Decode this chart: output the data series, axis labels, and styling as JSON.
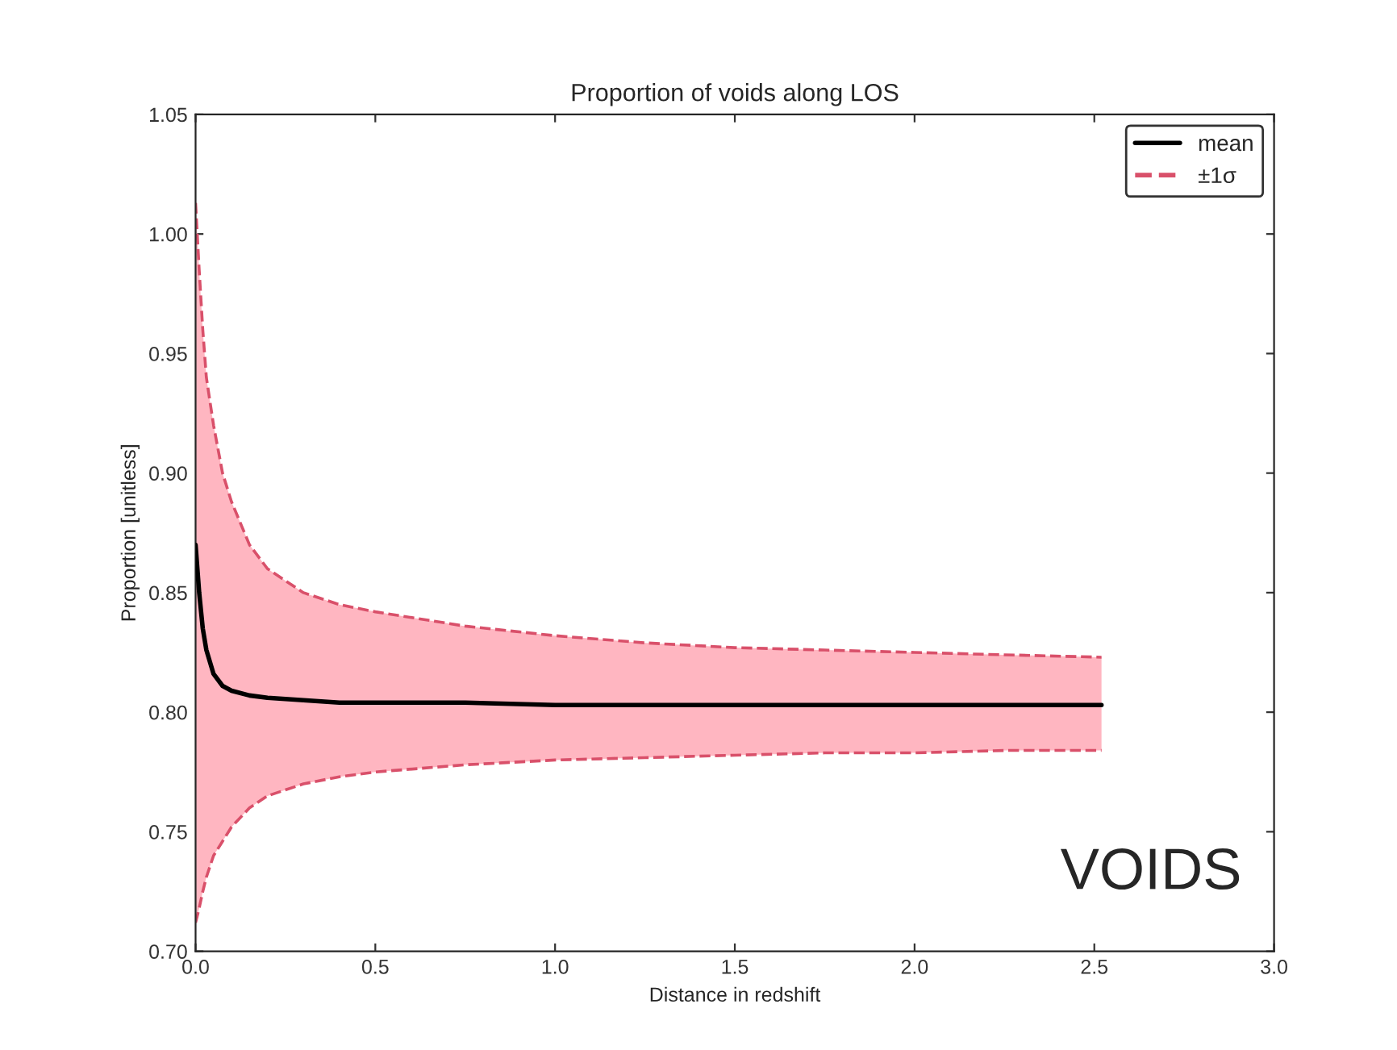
{
  "chart_data": {
    "type": "line",
    "title": "Proportion of voids along LOS",
    "xlabel": "Distance in redshift",
    "ylabel": "Proportion [unitless]",
    "x": [
      0,
      0.01,
      0.02,
      0.03,
      0.05,
      0.075,
      0.1,
      0.15,
      0.2,
      0.3,
      0.4,
      0.5,
      0.75,
      1.0,
      1.25,
      1.5,
      1.75,
      2.0,
      2.25,
      2.52
    ],
    "series": [
      {
        "name": "mean",
        "color": "#000000",
        "line_style": "solid",
        "values": [
          0.87,
          0.85,
          0.835,
          0.826,
          0.816,
          0.811,
          0.809,
          0.807,
          0.806,
          0.805,
          0.804,
          0.804,
          0.804,
          0.803,
          0.803,
          0.803,
          0.803,
          0.803,
          0.803,
          0.803
        ],
        "lower": [
          0.712,
          0.718,
          0.725,
          0.731,
          0.74,
          0.746,
          0.752,
          0.76,
          0.765,
          0.77,
          0.773,
          0.775,
          0.778,
          0.78,
          0.781,
          0.782,
          0.783,
          0.783,
          0.784,
          0.784
        ],
        "upper": [
          1.013,
          0.985,
          0.96,
          0.94,
          0.92,
          0.9,
          0.888,
          0.87,
          0.86,
          0.85,
          0.845,
          0.842,
          0.836,
          0.832,
          0.829,
          0.827,
          0.826,
          0.825,
          0.824,
          0.823
        ]
      },
      {
        "name": "±1σ",
        "color": "#d9506a",
        "line_style": "dashed",
        "values": [
          1.013,
          0.985,
          0.96,
          0.94,
          0.92,
          0.9,
          0.888,
          0.87,
          0.86,
          0.85,
          0.845,
          0.842,
          0.836,
          0.832,
          0.829,
          0.827,
          0.826,
          0.825,
          0.824,
          0.823
        ]
      },
      {
        "color": "#d9506a",
        "line_style": "dashed",
        "values": [
          0.712,
          0.718,
          0.725,
          0.731,
          0.74,
          0.746,
          0.752,
          0.76,
          0.765,
          0.77,
          0.773,
          0.775,
          0.778,
          0.78,
          0.781,
          0.782,
          0.783,
          0.783,
          0.784,
          0.784
        ]
      }
    ],
    "xlim": [
      0,
      3.0
    ],
    "xticks": [
      {
        "value": 0,
        "label": "0.0"
      },
      0.5,
      {
        "value": 1,
        "label": "1.0"
      },
      1.5,
      {
        "value": 2,
        "label": "2.0"
      },
      2.5,
      {
        "value": 3,
        "label": "3.0"
      }
    ],
    "ylim": [
      0.7,
      1.05
    ],
    "yticks": [
      {
        "value": 0.7,
        "label": "0.70"
      },
      0.75,
      {
        "value": 0.8,
        "label": "0.80"
      },
      0.85,
      {
        "value": 0.9,
        "label": "0.90"
      },
      0.95,
      {
        "value": 1.0,
        "label": "1.00"
      },
      1.05
    ],
    "legend": "top right",
    "grid": false,
    "annotations": [
      "VOIDS"
    ]
  }
}
